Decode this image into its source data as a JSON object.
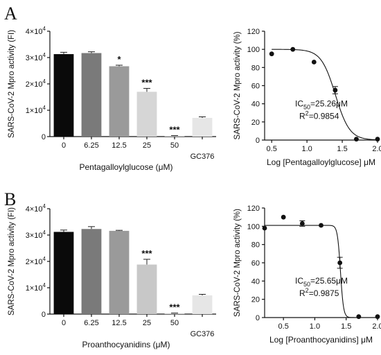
{
  "panels": [
    {
      "letter": "A"
    },
    {
      "letter": "B"
    }
  ],
  "chart_data": [
    {
      "panel": "A",
      "type": "bar",
      "ylabel": "SARS-CoV-2 Mpro activity (FI)",
      "xlabel": "Pentagalloylglucose (μM)",
      "ylim": [
        0,
        40000
      ],
      "yticks": [
        {
          "value": 0,
          "base": "0",
          "exp": ""
        },
        {
          "value": 10000,
          "base": "1×10",
          "exp": "4"
        },
        {
          "value": 20000,
          "base": "2×10",
          "exp": "4"
        },
        {
          "value": 30000,
          "base": "3×10",
          "exp": "4"
        },
        {
          "value": 40000,
          "base": "4×10",
          "exp": "4"
        }
      ],
      "categories": [
        "0",
        "6.25",
        "12.5",
        "25",
        "50",
        "GC376"
      ],
      "values": [
        31300,
        31700,
        26700,
        17000,
        300,
        7100
      ],
      "errors": [
        700,
        500,
        400,
        1300,
        100,
        400
      ],
      "colors": [
        "#0a0a0a",
        "#7a7a7a",
        "#9a9a9a",
        "#d6d6d6",
        "#d6d6d6",
        "#e6e6e6"
      ],
      "significance": [
        "",
        "",
        "*",
        "***",
        "***",
        ""
      ]
    },
    {
      "panel": "A",
      "type": "scatter",
      "ylabel": "SARS-CoV-2 Mpro activity (%)",
      "xlabel": "Log [Pentagalloylglucose] μM",
      "xlim": [
        0.4,
        2.0
      ],
      "ylim": [
        0,
        120
      ],
      "xticks": [
        "0.5",
        "1.0",
        "1.5",
        "2.0"
      ],
      "yticks": [
        "0",
        "20",
        "40",
        "60",
        "80",
        "100",
        "120"
      ],
      "x": [
        0.5,
        0.8,
        1.1,
        1.4,
        1.7,
        2.0
      ],
      "y": [
        95,
        100,
        86,
        55,
        1,
        1
      ],
      "errors": [
        0,
        0,
        0,
        4,
        0,
        0
      ],
      "fit": {
        "top": 100,
        "bottom": 0,
        "logIC50": 1.4026,
        "hill": 4.3
      },
      "ic50_label": "IC",
      "ic50_sub": "50",
      "ic50_value": "=25.26μM",
      "r2_label": "R",
      "r2_sup": "2",
      "r2_value": "=0.9854"
    },
    {
      "panel": "B",
      "type": "bar",
      "ylabel": "SARS-CoV-2 Mpro activity (FI)",
      "xlabel": "Proanthocyanidins (μM)",
      "ylim": [
        0,
        40000
      ],
      "yticks": [
        {
          "value": 0,
          "base": "0",
          "exp": ""
        },
        {
          "value": 10000,
          "base": "1×10",
          "exp": "4"
        },
        {
          "value": 20000,
          "base": "2×10",
          "exp": "4"
        },
        {
          "value": 30000,
          "base": "3×10",
          "exp": "4"
        },
        {
          "value": 40000,
          "base": "4×10",
          "exp": "4"
        }
      ],
      "categories": [
        "0",
        "6.25",
        "12.5",
        "25",
        "50",
        "GC376"
      ],
      "values": [
        31200,
        32300,
        31600,
        18800,
        300,
        7100
      ],
      "errors": [
        700,
        900,
        200,
        2000,
        100,
        400
      ],
      "colors": [
        "#0a0a0a",
        "#7a7a7a",
        "#9a9a9a",
        "#c8c8c8",
        "#d6d6d6",
        "#e6e6e6"
      ],
      "significance": [
        "",
        "",
        "",
        "***",
        "***",
        ""
      ]
    },
    {
      "panel": "B",
      "type": "scatter",
      "ylabel": "SARS-CoV-2 Mpro activity (%)",
      "xlabel": "Log [Proanthocyanidins] μM",
      "xlim": [
        0.2,
        2.0
      ],
      "ylim": [
        0,
        120
      ],
      "xticks": [
        "0.5",
        "1.0",
        "1.5",
        "2.0"
      ],
      "yticks": [
        "0",
        "20",
        "40",
        "60",
        "80",
        "100",
        "120"
      ],
      "x": [
        0.2,
        0.5,
        0.8,
        1.1,
        1.4,
        1.7,
        2.0
      ],
      "y": [
        98,
        110,
        103,
        101,
        60,
        1,
        1
      ],
      "errors": [
        0,
        0,
        3,
        0,
        6,
        0,
        0
      ],
      "fit": {
        "top": 101,
        "bottom": 0,
        "logIC50": 1.409,
        "hill": 18
      },
      "ic50_label": "IC",
      "ic50_sub": "50",
      "ic50_value": "=25.65μM",
      "r2_label": "R",
      "r2_sup": "2",
      "r2_value": "=0.9875"
    }
  ]
}
